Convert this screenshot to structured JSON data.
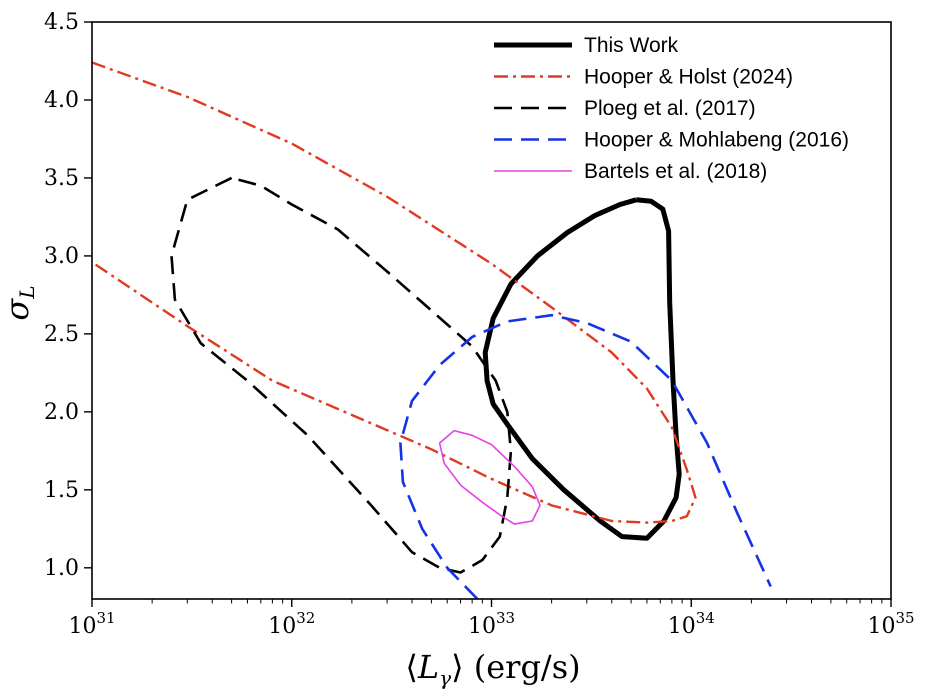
{
  "chart_data": {
    "type": "line",
    "xlabel": "⟨L_γ⟩ (erg/s)",
    "ylabel": "σ_L",
    "xscale": "log",
    "xlim": [
      1e+31,
      1e+35
    ],
    "ylim": [
      0.8,
      4.5
    ],
    "x_ticks": [
      {
        "value": 1e+31,
        "label": "10^31"
      },
      {
        "value": 1e+32,
        "label": "10^32"
      },
      {
        "value": 1e+33,
        "label": "10^33"
      },
      {
        "value": 1e+34,
        "label": "10^34"
      },
      {
        "value": 1e+35,
        "label": "10^35"
      }
    ],
    "y_ticks": [
      1.0,
      1.5,
      2.0,
      2.5,
      3.0,
      3.5,
      4.0,
      4.5
    ],
    "y_tick_labels": [
      "1.0",
      "1.5",
      "2.0",
      "2.5",
      "3.0",
      "3.5",
      "4.0",
      "4.5"
    ],
    "grid": false,
    "legend_position": "top-right",
    "series": [
      {
        "name": "This Work",
        "color": "#000000",
        "style": "solid-thick",
        "points": [
          [
            5.3e+33,
            3.36
          ],
          [
            6.3e+33,
            3.35
          ],
          [
            7.2e+33,
            3.3
          ],
          [
            7.7e+33,
            3.16
          ],
          [
            7.8e+33,
            2.7
          ],
          [
            8.1e+33,
            2.2
          ],
          [
            8.4e+33,
            1.85
          ],
          [
            8.7e+33,
            1.6
          ],
          [
            8.4e+33,
            1.45
          ],
          [
            7.3e+33,
            1.3
          ],
          [
            6e+33,
            1.19
          ],
          [
            4.5e+33,
            1.2
          ],
          [
            3.5e+33,
            1.3
          ],
          [
            2.3e+33,
            1.5
          ],
          [
            1.6e+33,
            1.7
          ],
          [
            1.2e+33,
            1.92
          ],
          [
            1.02e+33,
            2.05
          ],
          [
            9.5e+32,
            2.2
          ],
          [
            9.3e+32,
            2.38
          ],
          [
            1.02e+33,
            2.6
          ],
          [
            1.25e+33,
            2.82
          ],
          [
            1.7e+33,
            3.0
          ],
          [
            2.4e+33,
            3.15
          ],
          [
            3.3e+33,
            3.26
          ],
          [
            4.4e+33,
            3.33
          ],
          [
            5.3e+33,
            3.36
          ]
        ]
      },
      {
        "name": "Hooper & Holst (2024)",
        "color": "#e03a22",
        "style": "dashdot",
        "points": [
          [
            1e+31,
            4.24
          ],
          [
            3e+31,
            4.02
          ],
          [
            1e+32,
            3.72
          ],
          [
            3e+32,
            3.38
          ],
          [
            1e+33,
            2.95
          ],
          [
            2e+33,
            2.67
          ],
          [
            4e+33,
            2.38
          ],
          [
            6e+33,
            2.15
          ],
          [
            8e+33,
            1.9
          ],
          [
            9.5e+33,
            1.63
          ],
          [
            1.05e+34,
            1.45
          ],
          [
            9.5e+33,
            1.33
          ],
          [
            8e+33,
            1.3
          ],
          [
            6e+33,
            1.29
          ],
          [
            4e+33,
            1.3
          ],
          [
            2e+33,
            1.4
          ],
          [
            1e+33,
            1.57
          ],
          [
            5e+32,
            1.76
          ],
          [
            2e+32,
            1.98
          ],
          [
            8e+31,
            2.2
          ],
          [
            3e+31,
            2.55
          ],
          [
            1e+31,
            2.96
          ]
        ]
      },
      {
        "name": "Ploeg et al. (2017)",
        "color": "#000000",
        "style": "dashed",
        "points": [
          [
            5e+31,
            3.5
          ],
          [
            3e+31,
            3.36
          ],
          [
            2.5e+31,
            3.0
          ],
          [
            2.6e+31,
            2.72
          ],
          [
            3.5e+31,
            2.44
          ],
          [
            6e+31,
            2.2
          ],
          [
            1.2e+32,
            1.85
          ],
          [
            2.5e+32,
            1.4
          ],
          [
            4e+32,
            1.1
          ],
          [
            5.5e+32,
            1.0
          ],
          [
            7e+32,
            0.97
          ],
          [
            9e+32,
            1.05
          ],
          [
            1.1e+33,
            1.2
          ],
          [
            1.2e+33,
            1.45
          ],
          [
            1.25e+33,
            1.75
          ],
          [
            1.2e+33,
            2.0
          ],
          [
            1.05e+33,
            2.2
          ],
          [
            8e+32,
            2.42
          ],
          [
            5e+32,
            2.65
          ],
          [
            3e+32,
            2.9
          ],
          [
            1.7e+32,
            3.17
          ],
          [
            1e+32,
            3.33
          ],
          [
            7e+31,
            3.45
          ],
          [
            5e+31,
            3.5
          ]
        ]
      },
      {
        "name": "Hooper & Mohlabeng (2016)",
        "color": "#1433e6",
        "style": "dashed",
        "points": [
          [
            8.5e+32,
            0.8
          ],
          [
            6e+32,
            1.0
          ],
          [
            4.5e+32,
            1.25
          ],
          [
            3.6e+32,
            1.55
          ],
          [
            3.5e+32,
            1.8
          ],
          [
            4e+32,
            2.07
          ],
          [
            5.5e+32,
            2.3
          ],
          [
            8e+32,
            2.48
          ],
          [
            1.2e+33,
            2.58
          ],
          [
            2e+33,
            2.62
          ],
          [
            3e+33,
            2.57
          ],
          [
            5e+33,
            2.45
          ],
          [
            8e+33,
            2.2
          ],
          [
            1.2e+34,
            1.8
          ],
          [
            1.7e+34,
            1.35
          ],
          [
            2.5e+34,
            0.88
          ]
        ]
      },
      {
        "name": "Bartels et al. (2018)",
        "color": "#e442e4",
        "style": "thin",
        "points": [
          [
            6.5e+32,
            1.88
          ],
          [
            8e+32,
            1.85
          ],
          [
            1e+33,
            1.79
          ],
          [
            1.3e+33,
            1.65
          ],
          [
            1.6e+33,
            1.52
          ],
          [
            1.75e+33,
            1.4
          ],
          [
            1.6e+33,
            1.3
          ],
          [
            1.3e+33,
            1.28
          ],
          [
            1.1e+33,
            1.34
          ],
          [
            9e+32,
            1.42
          ],
          [
            7e+32,
            1.53
          ],
          [
            5.8e+32,
            1.67
          ],
          [
            5.5e+32,
            1.8
          ],
          [
            6.5e+32,
            1.88
          ]
        ]
      }
    ]
  }
}
